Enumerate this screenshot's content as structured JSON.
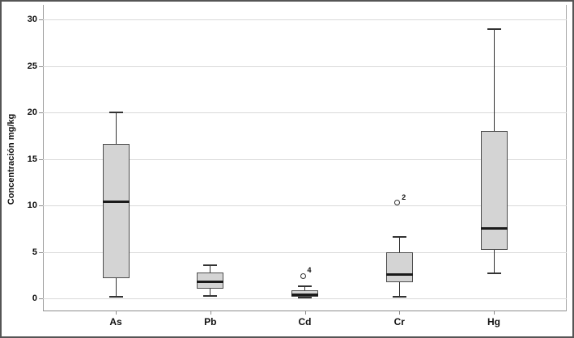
{
  "figure": {
    "background": "#ffffff",
    "border_color": "#555555"
  },
  "chart_data": {
    "type": "boxplot",
    "title": "",
    "xlabel": "",
    "ylabel": "Concentración mg/kg",
    "ylim": [
      0,
      30
    ],
    "yticks": [
      0,
      5,
      10,
      15,
      20,
      25,
      30
    ],
    "grid": true,
    "legend": false,
    "categories": [
      "As",
      "Pb",
      "Cd",
      "Cr",
      "Hg"
    ],
    "series": [
      {
        "name": "As",
        "min": 0.2,
        "q1": 2.2,
        "median": 10.4,
        "q3": 16.6,
        "max": 20.0,
        "outliers": []
      },
      {
        "name": "Pb",
        "min": 0.3,
        "q1": 1.0,
        "median": 1.8,
        "q3": 2.8,
        "max": 3.6,
        "outliers": []
      },
      {
        "name": "Cd",
        "min": 0.05,
        "q1": 0.2,
        "median": 0.45,
        "q3": 0.9,
        "max": 1.3,
        "outliers": [
          {
            "value": 2.4,
            "label": "4"
          }
        ]
      },
      {
        "name": "Cr",
        "min": 0.2,
        "q1": 1.7,
        "median": 2.6,
        "q3": 5.0,
        "max": 6.6,
        "outliers": [
          {
            "value": 10.3,
            "label": "2"
          }
        ]
      },
      {
        "name": "Hg",
        "min": 2.7,
        "q1": 5.2,
        "median": 7.6,
        "q3": 18.0,
        "max": 29.0,
        "outliers": []
      }
    ],
    "colors": {
      "box_fill": "#d4d4d4",
      "box_border": "#4d4d4d",
      "median": "#1a1a1a",
      "whisker": "#333333",
      "grid": "#d9d9d9",
      "axis": "#8c8c8c"
    }
  }
}
